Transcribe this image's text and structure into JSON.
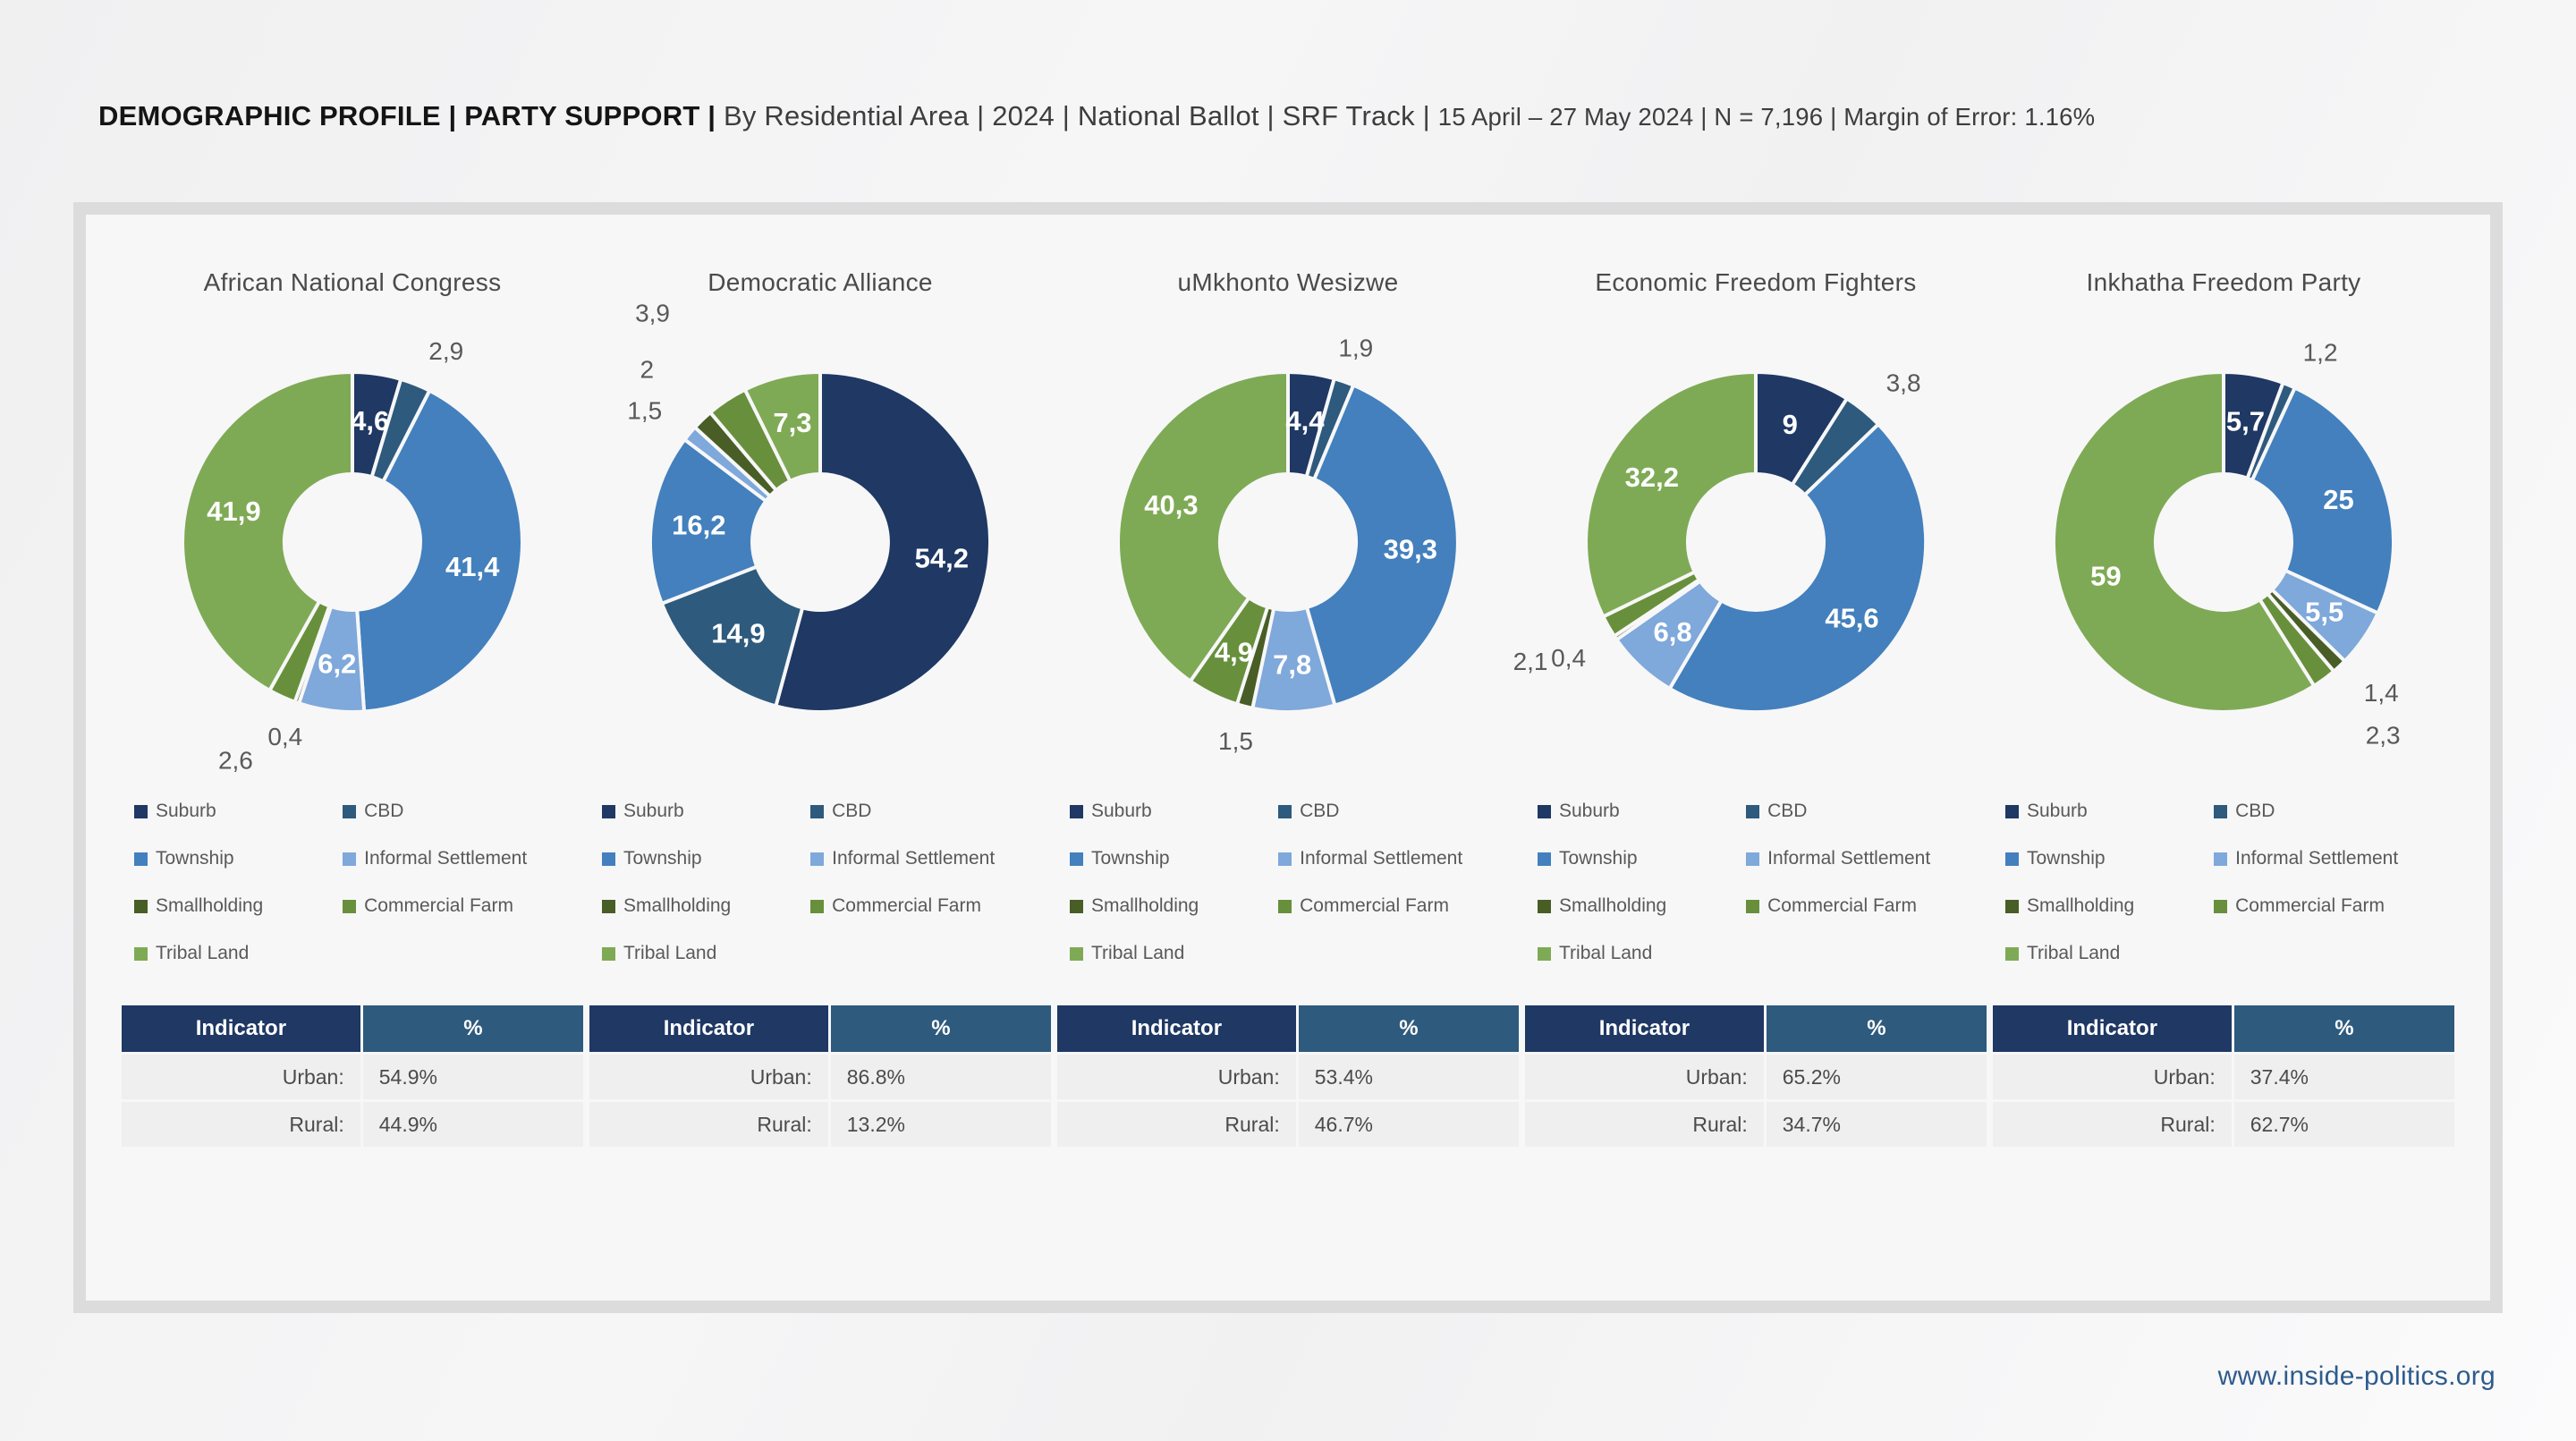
{
  "header": {
    "title_bold": "DEMOGRAPHIC PROFILE | PARTY SUPPORT | ",
    "title_regular": "By Residential Area | 2024 | National Ballot | SRF Track | ",
    "title_detail": "15 April – 27 May 2024 | N = 7,196 | Margin of Error: 1.16%"
  },
  "footer": {
    "website": "www.inside-politics.org"
  },
  "colors": {
    "suburb": "#1F3864",
    "cbd": "#2E5A7D",
    "township": "#4380BD",
    "informal_settlement": "#7FA8DB",
    "smallholding": "#485E26",
    "commercial_farm": "#68903C",
    "tribal_land": "#7FAA55",
    "table_header_indicator_bg": "#1F3864",
    "table_header_percent_bg": "#2E5A7D",
    "card_background": "#f7f7f8"
  },
  "legend": {
    "labels": [
      "Suburb",
      "CBD",
      "Township",
      "Informal Settlement",
      "Smallholding",
      "Commercial Farm",
      "Tribal Land"
    ]
  },
  "chart_data": [
    {
      "type": "pie",
      "title": "African National Congress",
      "categories": [
        "Suburb",
        "CBD",
        "Township",
        "Informal Settlement",
        "Smallholding",
        "Commercial Farm",
        "Tribal Land"
      ],
      "values": [
        4.6,
        2.9,
        41.4,
        6.2,
        0.4,
        2.6,
        41.9
      ],
      "table": {
        "headers": [
          "Indicator",
          "%"
        ],
        "rows": [
          [
            "Urban:",
            "54.9%"
          ],
          [
            "Rural:",
            "44.9%"
          ]
        ]
      }
    },
    {
      "type": "pie",
      "title": "Democratic Alliance",
      "categories": [
        "Suburb",
        "CBD",
        "Township",
        "Informal Settlement",
        "Smallholding",
        "Commercial Farm",
        "Tribal Land"
      ],
      "values": [
        54.2,
        14.9,
        16.2,
        1.5,
        2,
        3.9,
        7.3
      ],
      "table": {
        "headers": [
          "Indicator",
          "%"
        ],
        "rows": [
          [
            "Urban:",
            "86.8%"
          ],
          [
            "Rural:",
            "13.2%"
          ]
        ]
      }
    },
    {
      "type": "pie",
      "title": "uMkhonto Wesizwe",
      "categories": [
        "Suburb",
        "CBD",
        "Township",
        "Informal Settlement",
        "Smallholding",
        "Commercial Farm",
        "Tribal Land"
      ],
      "values": [
        4.4,
        1.9,
        39.3,
        7.8,
        1.5,
        4.9,
        40.3
      ],
      "table": {
        "headers": [
          "Indicator",
          "%"
        ],
        "rows": [
          [
            "Urban:",
            "53.4%"
          ],
          [
            "Rural:",
            "46.7%"
          ]
        ]
      }
    },
    {
      "type": "pie",
      "title": "Economic Freedom Fighters",
      "categories": [
        "Suburb",
        "CBD",
        "Township",
        "Informal Settlement",
        "Smallholding",
        "Commercial Farm",
        "Tribal Land"
      ],
      "values": [
        9,
        3.8,
        45.6,
        6.8,
        0.4,
        2.1,
        32.2
      ],
      "table": {
        "headers": [
          "Indicator",
          "%"
        ],
        "rows": [
          [
            "Urban:",
            "65.2%"
          ],
          [
            "Rural:",
            "34.7%"
          ]
        ]
      }
    },
    {
      "type": "pie",
      "title": "Inkhatha Freedom Party",
      "categories": [
        "Suburb",
        "CBD",
        "Township",
        "Informal Settlement",
        "Smallholding",
        "Commercial Farm",
        "Tribal Land"
      ],
      "values": [
        5.7,
        1.2,
        25,
        5.5,
        1.4,
        2.3,
        59
      ],
      "table": {
        "headers": [
          "Indicator",
          "%"
        ],
        "rows": [
          [
            "Urban:",
            "37.4%"
          ],
          [
            "Rural:",
            "62.7%"
          ]
        ]
      }
    }
  ]
}
